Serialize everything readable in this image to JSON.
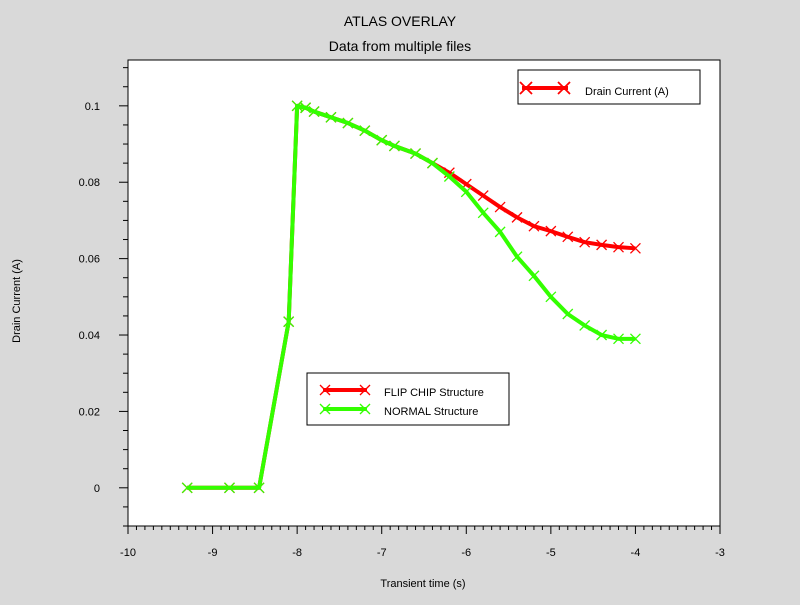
{
  "chart_data": {
    "type": "line",
    "title": "ATLAS OVERLAY",
    "subtitle": "Data from multiple files",
    "xlabel": "Transient time (s)",
    "ylabel": "Drain Current (A)",
    "xlim": [
      -10,
      -3
    ],
    "ylim": [
      -0.01,
      0.112
    ],
    "x_ticks": [
      -10,
      -9,
      -8,
      -7,
      -6,
      -5,
      -4,
      -3
    ],
    "x_tick_labels": [
      "-10",
      "-9",
      "-8",
      "-7",
      "-6",
      "-5",
      "-4",
      "-3"
    ],
    "y_ticks": [
      0,
      0.02,
      0.04,
      0.06,
      0.08,
      0.1
    ],
    "y_tick_labels": [
      "0",
      "0.02",
      "0.04",
      "0.06",
      "0.08",
      "0.1"
    ],
    "legend_top_right": {
      "label": "Drain Current (A)",
      "color": "#ff0000"
    },
    "legend_center_left": [
      {
        "label": "FLIP CHIP Structure",
        "color": "#ff0000"
      },
      {
        "label": "NORMAL Structure",
        "color": "#33ff00"
      }
    ],
    "series": [
      {
        "name": "FLIP CHIP Structure",
        "color": "#ff0000",
        "points": [
          [
            -9.3,
            0.0
          ],
          [
            -8.8,
            0.0
          ],
          [
            -8.45,
            0.0
          ],
          [
            -8.1,
            0.0435
          ],
          [
            -8.0,
            0.1
          ],
          [
            -7.9,
            0.0995
          ],
          [
            -7.8,
            0.0985
          ],
          [
            -7.6,
            0.097
          ],
          [
            -7.4,
            0.0955
          ],
          [
            -7.2,
            0.0935
          ],
          [
            -7.0,
            0.091
          ],
          [
            -6.85,
            0.0895
          ],
          [
            -6.6,
            0.0875
          ],
          [
            -6.4,
            0.085
          ],
          [
            -6.2,
            0.0825
          ],
          [
            -6.0,
            0.0795
          ],
          [
            -5.8,
            0.0765
          ],
          [
            -5.6,
            0.0735
          ],
          [
            -5.4,
            0.0708
          ],
          [
            -5.2,
            0.0685
          ],
          [
            -5.0,
            0.0672
          ],
          [
            -4.8,
            0.0657
          ],
          [
            -4.6,
            0.0643
          ],
          [
            -4.4,
            0.0636
          ],
          [
            -4.2,
            0.063
          ],
          [
            -4.0,
            0.0627
          ]
        ]
      },
      {
        "name": "NORMAL Structure",
        "color": "#33ff00",
        "points": [
          [
            -9.3,
            0.0
          ],
          [
            -8.8,
            0.0
          ],
          [
            -8.45,
            0.0
          ],
          [
            -8.1,
            0.0435
          ],
          [
            -8.0,
            0.1
          ],
          [
            -7.9,
            0.0995
          ],
          [
            -7.8,
            0.0985
          ],
          [
            -7.6,
            0.097
          ],
          [
            -7.4,
            0.0955
          ],
          [
            -7.2,
            0.0935
          ],
          [
            -7.0,
            0.091
          ],
          [
            -6.85,
            0.0895
          ],
          [
            -6.6,
            0.0875
          ],
          [
            -6.4,
            0.085
          ],
          [
            -6.2,
            0.0815
          ],
          [
            -6.0,
            0.0775
          ],
          [
            -5.8,
            0.072
          ],
          [
            -5.6,
            0.067
          ],
          [
            -5.4,
            0.0605
          ],
          [
            -5.2,
            0.0555
          ],
          [
            -5.0,
            0.05
          ],
          [
            -4.8,
            0.0455
          ],
          [
            -4.6,
            0.0425
          ],
          [
            -4.4,
            0.04
          ],
          [
            -4.2,
            0.039
          ],
          [
            -4.0,
            0.039
          ]
        ]
      }
    ]
  }
}
